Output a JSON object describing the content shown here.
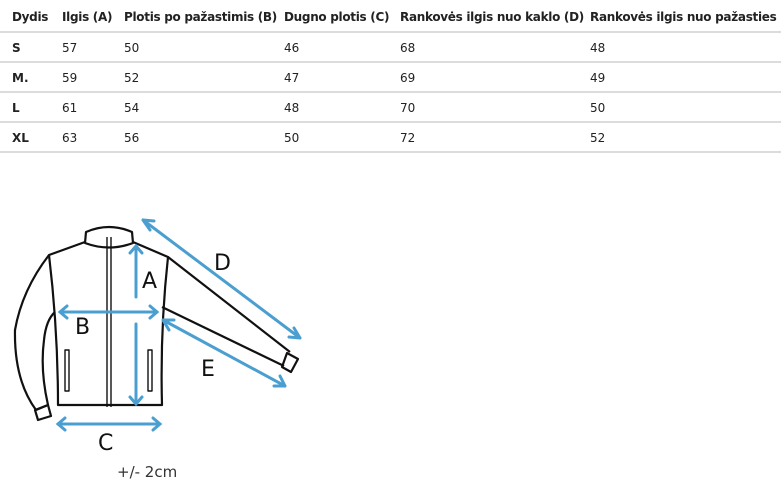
{
  "table": {
    "headers": [
      "Dydis",
      "Ilgis (A)",
      "Plotis po pažastimis (B)",
      "Dugno plotis (C)",
      "Rankovės ilgis nuo kaklo (D)",
      "Rankovės ilgis nuo pažasties (E)"
    ],
    "rows": [
      [
        "S",
        "57",
        "50",
        "46",
        "68",
        "48"
      ],
      [
        "M.",
        "59",
        "52",
        "47",
        "69",
        "49"
      ],
      [
        "L",
        "61",
        "54",
        "48",
        "70",
        "50"
      ],
      [
        "XL",
        "63",
        "56",
        "50",
        "72",
        "52"
      ]
    ]
  },
  "diagram": {
    "labels": {
      "a": "A",
      "b": "B",
      "c": "C",
      "d": "D",
      "e": "E"
    },
    "tolerance": "+/- 2cm",
    "arrow_color": "#4a9fd0",
    "outline_color": "#111111"
  }
}
